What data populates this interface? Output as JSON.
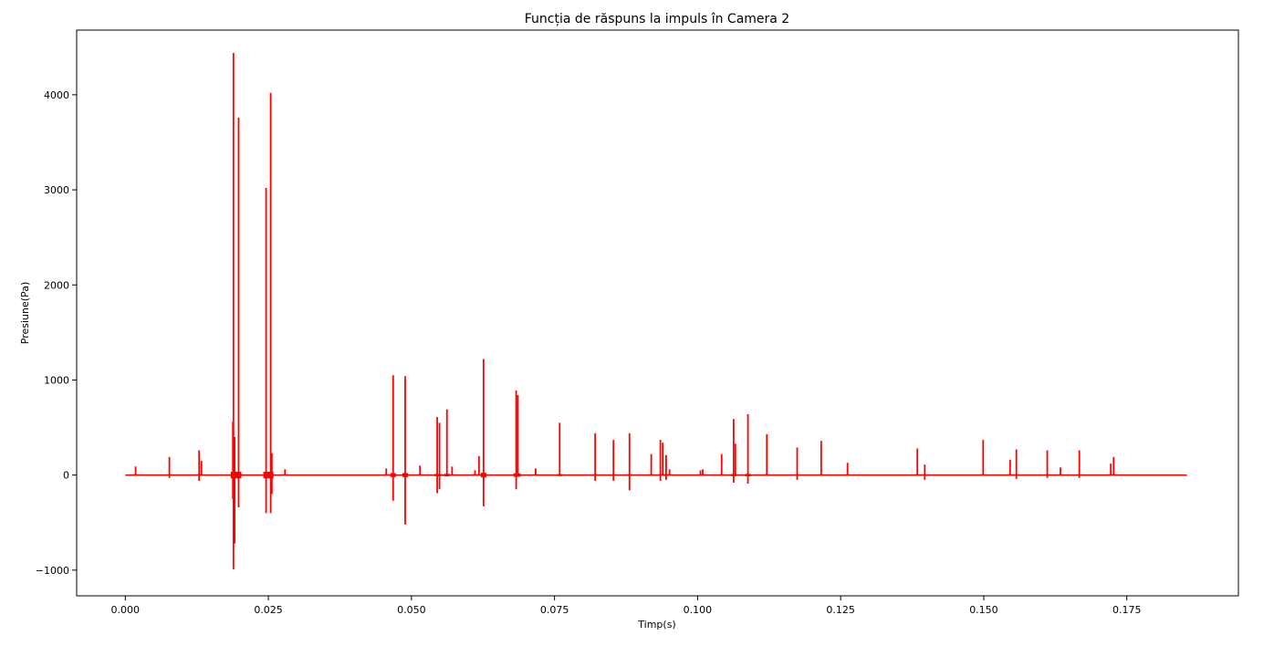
{
  "chart_data": {
    "type": "line",
    "title": "Funcția de răspuns la impuls în Camera 2",
    "xlabel": "Timp(s)",
    "ylabel": "Presiune(Pa)",
    "xlim": [
      -0.0085,
      0.1945
    ],
    "ylim": [
      -1270,
      4680
    ],
    "x_ticks": [
      0.0,
      0.025,
      0.05,
      0.075,
      0.1,
      0.125,
      0.15,
      0.175
    ],
    "x_tick_labels": [
      "0.000",
      "0.025",
      "0.050",
      "0.075",
      "0.100",
      "0.125",
      "0.150",
      "0.175"
    ],
    "y_ticks": [
      -1000,
      0,
      1000,
      2000,
      3000,
      4000
    ],
    "y_tick_labels": [
      "−1000",
      "0",
      "1000",
      "2000",
      "3000",
      "4000"
    ],
    "grid": false,
    "series_color": "#ff0000",
    "series": [
      {
        "x_range": [
          0.0,
          0.1855
        ],
        "baseline": 0,
        "spikes": [
          {
            "t": 0.0018,
            "v": 90
          },
          {
            "t": 0.0077,
            "v": 190,
            "neg": -30
          },
          {
            "t": 0.0129,
            "v": 260,
            "neg": -60
          },
          {
            "t": 0.0133,
            "v": 150
          },
          {
            "t": 0.0188,
            "v": 560,
            "neg": -250
          },
          {
            "t": 0.0189,
            "v": 4440,
            "neg": -990
          },
          {
            "t": 0.0191,
            "v": 400,
            "neg": -720
          },
          {
            "t": 0.0198,
            "v": 3760,
            "neg": -340
          },
          {
            "t": 0.0246,
            "v": 3020,
            "neg": -400
          },
          {
            "t": 0.0254,
            "v": 4020,
            "neg": -400
          },
          {
            "t": 0.0256,
            "v": 230,
            "neg": -200
          },
          {
            "t": 0.0279,
            "v": 60
          },
          {
            "t": 0.0456,
            "v": 70
          },
          {
            "t": 0.0468,
            "v": 1050,
            "neg": -270
          },
          {
            "t": 0.0489,
            "v": 1040,
            "neg": -520
          },
          {
            "t": 0.0515,
            "v": 100
          },
          {
            "t": 0.0545,
            "v": 610,
            "neg": -190
          },
          {
            "t": 0.0549,
            "v": 550,
            "neg": -150
          },
          {
            "t": 0.0562,
            "v": 690
          },
          {
            "t": 0.0571,
            "v": 90
          },
          {
            "t": 0.0611,
            "v": 50
          },
          {
            "t": 0.0618,
            "v": 200
          },
          {
            "t": 0.0626,
            "v": 1220,
            "neg": -330
          },
          {
            "t": 0.0683,
            "v": 890,
            "neg": -150
          },
          {
            "t": 0.0686,
            "v": 840
          },
          {
            "t": 0.0717,
            "v": 70
          },
          {
            "t": 0.0759,
            "v": 550
          },
          {
            "t": 0.0821,
            "v": 440,
            "neg": -60
          },
          {
            "t": 0.0853,
            "v": 370,
            "neg": -60
          },
          {
            "t": 0.0881,
            "v": 440,
            "neg": -160
          },
          {
            "t": 0.0919,
            "v": 220
          },
          {
            "t": 0.0935,
            "v": 370,
            "neg": -60
          },
          {
            "t": 0.0939,
            "v": 340
          },
          {
            "t": 0.0945,
            "v": 210,
            "neg": -50
          },
          {
            "t": 0.0951,
            "v": 60
          },
          {
            "t": 0.1005,
            "v": 50
          },
          {
            "t": 0.1009,
            "v": 60
          },
          {
            "t": 0.1042,
            "v": 220
          },
          {
            "t": 0.1063,
            "v": 590,
            "neg": -80
          },
          {
            "t": 0.1066,
            "v": 330
          },
          {
            "t": 0.1088,
            "v": 640,
            "neg": -90
          },
          {
            "t": 0.1121,
            "v": 430
          },
          {
            "t": 0.1174,
            "v": 290,
            "neg": -50
          },
          {
            "t": 0.1216,
            "v": 360
          },
          {
            "t": 0.1262,
            "v": 130
          },
          {
            "t": 0.1384,
            "v": 280
          },
          {
            "t": 0.1397,
            "v": 110,
            "neg": -50
          },
          {
            "t": 0.1499,
            "v": 370
          },
          {
            "t": 0.1546,
            "v": 160
          },
          {
            "t": 0.1557,
            "v": 270,
            "neg": -40
          },
          {
            "t": 0.1611,
            "v": 260,
            "neg": -30
          },
          {
            "t": 0.1634,
            "v": 80
          },
          {
            "t": 0.1667,
            "v": 260,
            "neg": -30
          },
          {
            "t": 0.1722,
            "v": 120
          },
          {
            "t": 0.1727,
            "v": 190
          }
        ]
      }
    ]
  }
}
